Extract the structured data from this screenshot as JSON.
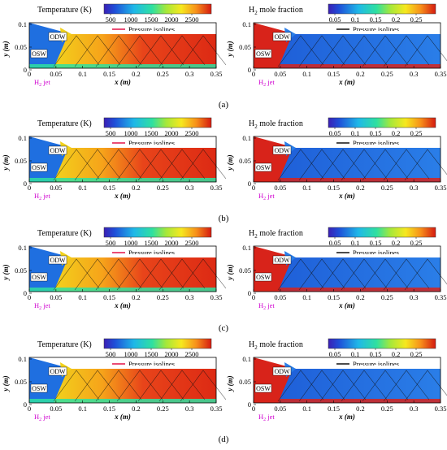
{
  "colorbar_temperature": {
    "title": "Temperature (K)",
    "ticks": [
      "500",
      "1000",
      "1500",
      "2000",
      "2500"
    ],
    "legend_label": "Pressure isolines"
  },
  "colorbar_h2": {
    "title_prefix": "H",
    "title_subscript": "2",
    "title_suffix": " mole fraction",
    "ticks": [
      "0.05",
      "0.1",
      "0.15",
      "0.2",
      "0.25"
    ],
    "legend_label": "Pressure isolines"
  },
  "axes": {
    "xlabel": "x (m)",
    "ylabel": "y (m)",
    "xticks": [
      "0",
      "0.05",
      "0.1",
      "0.15",
      "0.2",
      "0.25",
      "0.3",
      "0.35"
    ],
    "yticks": [
      "0",
      "0.05",
      "0.1"
    ]
  },
  "annotations": {
    "odw": "ODW",
    "osw": "OSW",
    "jet_prefix": "H",
    "jet_subscript": "2",
    "jet_suffix": " jet"
  },
  "panels": [
    {
      "label": "(a)"
    },
    {
      "label": "(b)"
    },
    {
      "label": "(c)"
    },
    {
      "label": "(d)"
    }
  ],
  "colors": {
    "jet_label": "#d000d0",
    "legend_line_temperature": "#e0003a",
    "legend_line_h2": "#000000"
  },
  "chart_data": [
    {
      "type": "heatmap",
      "panel": "(a)",
      "field": "Temperature (K)",
      "colorbar_ticks": [
        500,
        1000,
        1500,
        2000,
        2500
      ],
      "overlay": "Pressure isolines",
      "xlabel": "x (m)",
      "ylabel": "y (m)",
      "xlim": [
        0,
        0.35
      ],
      "ylim": [
        0,
        0.1
      ]
    },
    {
      "type": "heatmap",
      "panel": "(a)",
      "field": "H2 mole fraction",
      "colorbar_ticks": [
        0.05,
        0.1,
        0.15,
        0.2,
        0.25
      ],
      "overlay": "Pressure isolines",
      "xlabel": "x (m)",
      "ylabel": "y (m)",
      "xlim": [
        0,
        0.35
      ],
      "ylim": [
        0,
        0.1
      ]
    },
    {
      "type": "heatmap",
      "panel": "(b)",
      "field": "Temperature (K)",
      "colorbar_ticks": [
        500,
        1000,
        1500,
        2000,
        2500
      ],
      "overlay": "Pressure isolines",
      "xlabel": "x (m)",
      "ylabel": "y (m)",
      "xlim": [
        0,
        0.35
      ],
      "ylim": [
        0,
        0.1
      ]
    },
    {
      "type": "heatmap",
      "panel": "(b)",
      "field": "H2 mole fraction",
      "colorbar_ticks": [
        0.05,
        0.1,
        0.15,
        0.2,
        0.25
      ],
      "overlay": "Pressure isolines",
      "xlabel": "x (m)",
      "ylabel": "y (m)",
      "xlim": [
        0,
        0.35
      ],
      "ylim": [
        0,
        0.1
      ]
    },
    {
      "type": "heatmap",
      "panel": "(c)",
      "field": "Temperature (K)",
      "colorbar_ticks": [
        500,
        1000,
        1500,
        2000,
        2500
      ],
      "overlay": "Pressure isolines",
      "xlabel": "x (m)",
      "ylabel": "y (m)",
      "xlim": [
        0,
        0.35
      ],
      "ylim": [
        0,
        0.1
      ]
    },
    {
      "type": "heatmap",
      "panel": "(c)",
      "field": "H2 mole fraction",
      "colorbar_ticks": [
        0.05,
        0.1,
        0.15,
        0.2,
        0.25
      ],
      "overlay": "Pressure isolines",
      "xlabel": "x (m)",
      "ylabel": "y (m)",
      "xlim": [
        0,
        0.35
      ],
      "ylim": [
        0,
        0.1
      ]
    },
    {
      "type": "heatmap",
      "panel": "(d)",
      "field": "Temperature (K)",
      "colorbar_ticks": [
        500,
        1000,
        1500,
        2000,
        2500
      ],
      "overlay": "Pressure isolines",
      "xlabel": "x (m)",
      "ylabel": "y (m)",
      "xlim": [
        0,
        0.35
      ],
      "ylim": [
        0,
        0.1
      ]
    },
    {
      "type": "heatmap",
      "panel": "(d)",
      "field": "H2 mole fraction",
      "colorbar_ticks": [
        0.05,
        0.1,
        0.15,
        0.2,
        0.25
      ],
      "overlay": "Pressure isolines",
      "xlabel": "x (m)",
      "ylabel": "y (m)",
      "xlim": [
        0,
        0.35
      ],
      "ylim": [
        0,
        0.1
      ]
    }
  ]
}
